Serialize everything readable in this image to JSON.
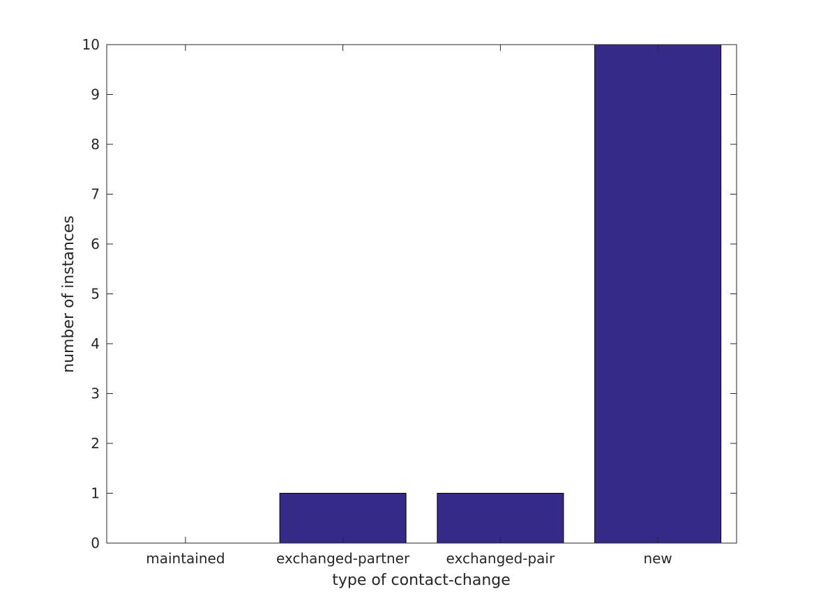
{
  "chart_data": {
    "type": "bar",
    "title": "",
    "xlabel": "type of contact-change",
    "ylabel": "number of instances",
    "categories": [
      "maintained",
      "exchanged-partner",
      "exchanged-pair",
      "new"
    ],
    "values": [
      0,
      1,
      1,
      10
    ],
    "ylim": [
      0,
      10
    ],
    "yticks": [
      0,
      1,
      2,
      3,
      4,
      5,
      6,
      7,
      8,
      9,
      10
    ],
    "grid": false,
    "legend": "none",
    "colors": {
      "bar": "#352a87",
      "bar_edge": "#000000",
      "axis": "#262626",
      "text": "#262626",
      "background": "#ffffff"
    }
  }
}
